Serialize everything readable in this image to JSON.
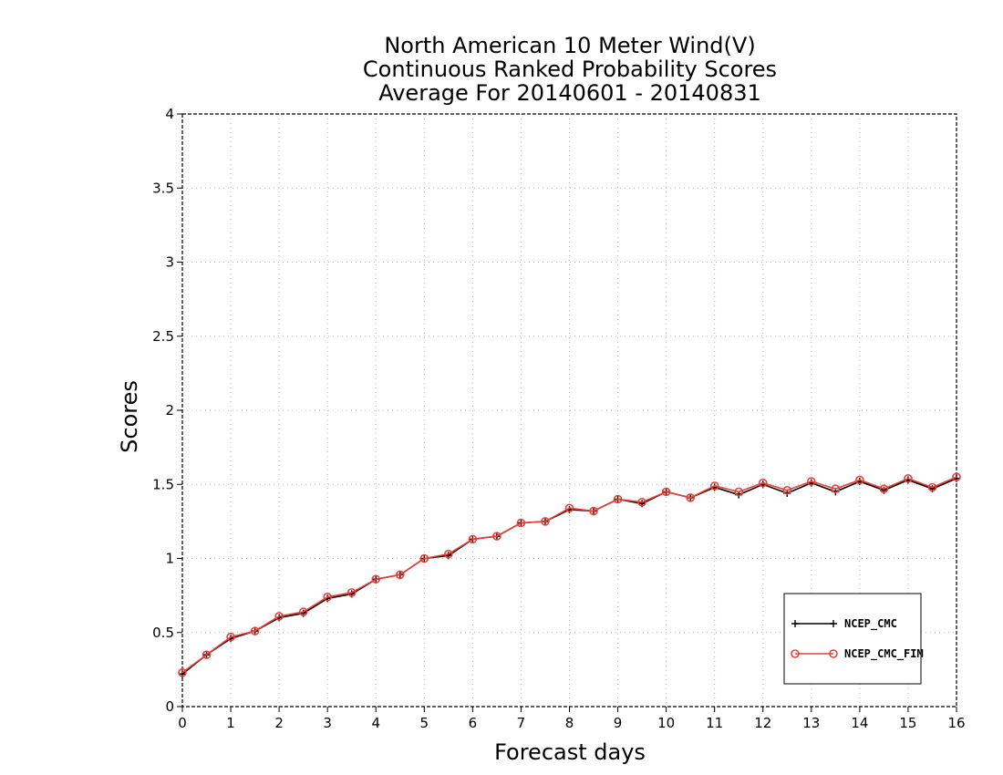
{
  "chart_data": {
    "type": "line",
    "title": [
      "North American 10 Meter Wind(V)",
      "Continuous Ranked Probability Scores",
      "Average For 20140601 - 20140831"
    ],
    "xlabel": "Forecast days",
    "ylabel": "Scores",
    "xlim": [
      0,
      16
    ],
    "ylim": [
      0,
      4
    ],
    "x_ticks": [
      "0",
      "1",
      "2",
      "3",
      "4",
      "5",
      "6",
      "7",
      "8",
      "9",
      "10",
      "11",
      "12",
      "13",
      "14",
      "15",
      "16"
    ],
    "y_ticks": [
      "0",
      "0.5",
      "1",
      "1.5",
      "2",
      "2.5",
      "3",
      "3.5",
      "4"
    ],
    "grid": true,
    "legend_position": "bottom-right",
    "x": [
      0,
      0.5,
      1,
      1.5,
      2,
      2.5,
      3,
      3.5,
      4,
      4.5,
      5,
      5.5,
      6,
      6.5,
      7,
      7.5,
      8,
      8.5,
      9,
      9.5,
      10,
      10.5,
      11,
      11.5,
      12,
      12.5,
      13,
      13.5,
      14,
      14.5,
      15,
      15.5,
      16
    ],
    "series": [
      {
        "name": "NCEP_CMC",
        "color": "#000000",
        "marker": "plus",
        "values": [
          0.22,
          0.35,
          0.46,
          0.51,
          0.6,
          0.63,
          0.73,
          0.76,
          0.86,
          0.89,
          1.0,
          1.02,
          1.13,
          1.15,
          1.24,
          1.25,
          1.33,
          1.32,
          1.4,
          1.37,
          1.45,
          1.41,
          1.48,
          1.43,
          1.5,
          1.44,
          1.51,
          1.45,
          1.52,
          1.46,
          1.53,
          1.47,
          1.54
        ]
      },
      {
        "name": "NCEP_CMC_FIM",
        "color": "#e8413b",
        "marker": "circle",
        "values": [
          0.23,
          0.35,
          0.47,
          0.51,
          0.61,
          0.64,
          0.74,
          0.77,
          0.86,
          0.89,
          1.0,
          1.03,
          1.13,
          1.15,
          1.24,
          1.25,
          1.34,
          1.32,
          1.4,
          1.38,
          1.45,
          1.41,
          1.49,
          1.45,
          1.51,
          1.46,
          1.52,
          1.47,
          1.53,
          1.47,
          1.54,
          1.48,
          1.55
        ]
      }
    ]
  }
}
